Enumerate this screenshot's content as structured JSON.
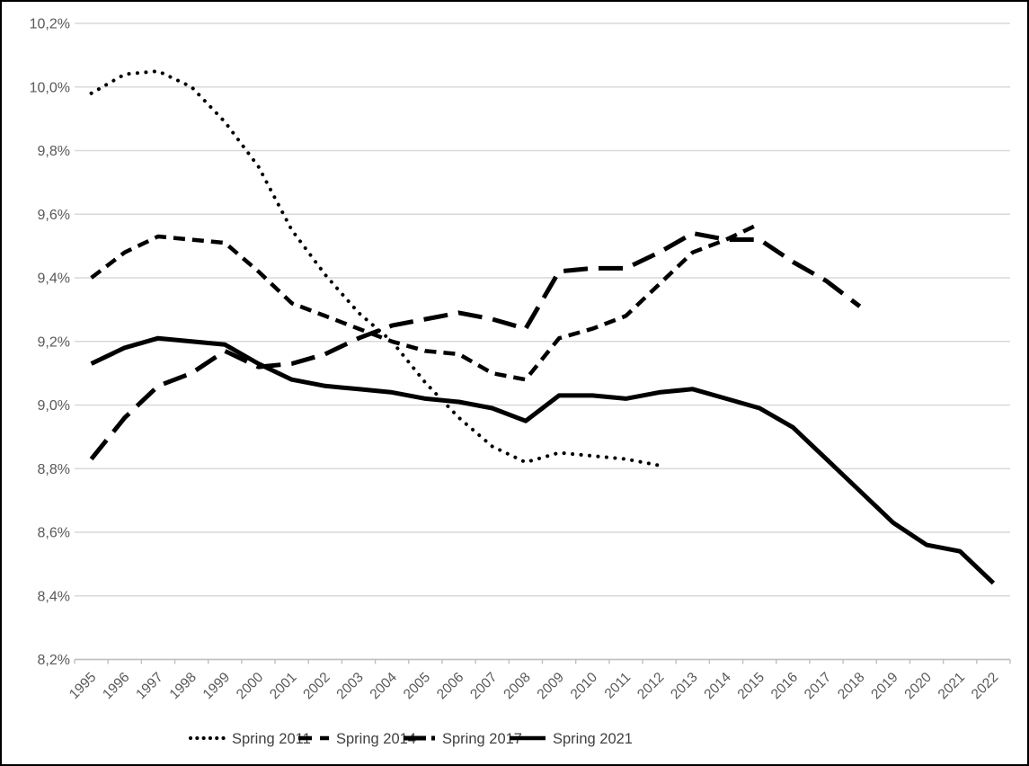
{
  "chart_data": {
    "type": "line",
    "title": "",
    "x": [
      1995,
      1996,
      1997,
      1998,
      1999,
      2000,
      2001,
      2002,
      2003,
      2004,
      2005,
      2006,
      2007,
      2008,
      2009,
      2010,
      2011,
      2012,
      2013,
      2014,
      2015,
      2016,
      2017,
      2018,
      2019,
      2020,
      2021,
      2022
    ],
    "series": [
      {
        "name": "Spring 2011",
        "style": "dotted",
        "start_year": 1995,
        "end_year": 2012,
        "values": [
          9.98,
          10.04,
          10.05,
          10.0,
          9.89,
          9.75,
          9.55,
          9.41,
          9.29,
          9.2,
          9.07,
          8.96,
          8.87,
          8.82,
          8.85,
          8.84,
          8.83,
          8.81
        ]
      },
      {
        "name": "Spring 2014",
        "style": "short-dash",
        "start_year": 1995,
        "end_year": 2015,
        "values": [
          9.4,
          9.48,
          9.53,
          9.52,
          9.51,
          9.42,
          9.32,
          9.28,
          9.24,
          9.2,
          9.17,
          9.16,
          9.1,
          9.08,
          9.21,
          9.24,
          9.28,
          9.38,
          9.48,
          9.52,
          9.57
        ]
      },
      {
        "name": "Spring 2017",
        "style": "long-dash",
        "start_year": 1995,
        "end_year": 2018,
        "values": [
          8.83,
          8.96,
          9.06,
          9.1,
          9.17,
          9.12,
          9.13,
          9.16,
          9.21,
          9.25,
          9.27,
          9.29,
          9.27,
          9.24,
          9.42,
          9.43,
          9.43,
          9.48,
          9.54,
          9.52,
          9.52,
          9.45,
          9.39,
          9.31
        ]
      },
      {
        "name": "Spring 2021",
        "style": "solid",
        "start_year": 1995,
        "end_year": 2022,
        "values": [
          9.13,
          9.18,
          9.21,
          9.2,
          9.19,
          9.13,
          9.08,
          9.06,
          9.05,
          9.04,
          9.02,
          9.01,
          8.99,
          8.95,
          9.03,
          9.03,
          9.02,
          9.04,
          9.05,
          9.02,
          8.99,
          8.93,
          8.83,
          8.73,
          8.63,
          8.56,
          8.54,
          8.44
        ]
      }
    ],
    "y_axis": {
      "min": 8.2,
      "max": 10.2,
      "step": 0.2,
      "labels_top_to_bottom": [
        "10,2%",
        "10,0%",
        "9,8%",
        "9,6%",
        "9,4%",
        "9,2%",
        "9,0%",
        "8,8%",
        "8,6%",
        "8,4%",
        "8,2%"
      ]
    },
    "x_axis": {
      "labels": [
        "1995",
        "1996",
        "1997",
        "1998",
        "1999",
        "2000",
        "2001",
        "2002",
        "2003",
        "2004",
        "2005",
        "2006",
        "2007",
        "2008",
        "2009",
        "2010",
        "2011",
        "2012",
        "2013",
        "2014",
        "2015",
        "2016",
        "2017",
        "2018",
        "2019",
        "2020",
        "2021",
        "2022"
      ],
      "label_rotation_deg": -45
    },
    "legend": {
      "position": "bottom",
      "entries": [
        {
          "label": "Spring 2011",
          "style": "dotted"
        },
        {
          "label": "Spring 2014",
          "style": "short-dash"
        },
        {
          "label": "Spring 2017",
          "style": "long-dash"
        },
        {
          "label": "Spring 2021",
          "style": "solid"
        }
      ]
    },
    "grid": true,
    "colors": {
      "series_color": "#000000",
      "gridline": "#d9d9d9",
      "axis_line": "#bfbfbf",
      "axis_text": "#595959",
      "legend_text": "#404040",
      "background": "#ffffff",
      "frame_border": "#000000"
    }
  }
}
